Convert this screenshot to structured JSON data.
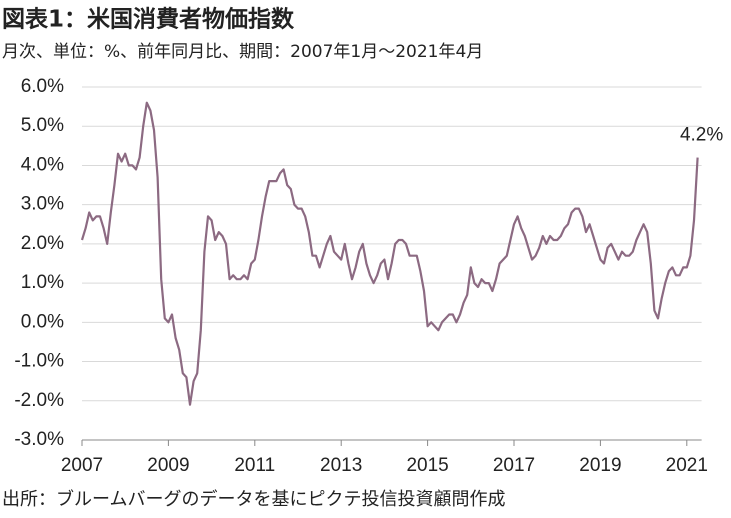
{
  "chart_data": {
    "type": "line",
    "title": "図表1：米国消費者物価指数",
    "subtitle": "月次、単位：%、前年同月比、期間：2007年1月～2021年4月",
    "source": "出所：ブルームバーグのデータを基にピクテ投信投資顧問作成",
    "x": [
      "2007-01",
      "2007-02",
      "2007-03",
      "2007-04",
      "2007-05",
      "2007-06",
      "2007-07",
      "2007-08",
      "2007-09",
      "2007-10",
      "2007-11",
      "2007-12",
      "2008-01",
      "2008-02",
      "2008-03",
      "2008-04",
      "2008-05",
      "2008-06",
      "2008-07",
      "2008-08",
      "2008-09",
      "2008-10",
      "2008-11",
      "2008-12",
      "2009-01",
      "2009-02",
      "2009-03",
      "2009-04",
      "2009-05",
      "2009-06",
      "2009-07",
      "2009-08",
      "2009-09",
      "2009-10",
      "2009-11",
      "2009-12",
      "2010-01",
      "2010-02",
      "2010-03",
      "2010-04",
      "2010-05",
      "2010-06",
      "2010-07",
      "2010-08",
      "2010-09",
      "2010-10",
      "2010-11",
      "2010-12",
      "2011-01",
      "2011-02",
      "2011-03",
      "2011-04",
      "2011-05",
      "2011-06",
      "2011-07",
      "2011-08",
      "2011-09",
      "2011-10",
      "2011-11",
      "2011-12",
      "2012-01",
      "2012-02",
      "2012-03",
      "2012-04",
      "2012-05",
      "2012-06",
      "2012-07",
      "2012-08",
      "2012-09",
      "2012-10",
      "2012-11",
      "2012-12",
      "2013-01",
      "2013-02",
      "2013-03",
      "2013-04",
      "2013-05",
      "2013-06",
      "2013-07",
      "2013-08",
      "2013-09",
      "2013-10",
      "2013-11",
      "2013-12",
      "2014-01",
      "2014-02",
      "2014-03",
      "2014-04",
      "2014-05",
      "2014-06",
      "2014-07",
      "2014-08",
      "2014-09",
      "2014-10",
      "2014-11",
      "2014-12",
      "2015-01",
      "2015-02",
      "2015-03",
      "2015-04",
      "2015-05",
      "2015-06",
      "2015-07",
      "2015-08",
      "2015-09",
      "2015-10",
      "2015-11",
      "2015-12",
      "2016-01",
      "2016-02",
      "2016-03",
      "2016-04",
      "2016-05",
      "2016-06",
      "2016-07",
      "2016-08",
      "2016-09",
      "2016-10",
      "2016-11",
      "2016-12",
      "2017-01",
      "2017-02",
      "2017-03",
      "2017-04",
      "2017-05",
      "2017-06",
      "2017-07",
      "2017-08",
      "2017-09",
      "2017-10",
      "2017-11",
      "2017-12",
      "2018-01",
      "2018-02",
      "2018-03",
      "2018-04",
      "2018-05",
      "2018-06",
      "2018-07",
      "2018-08",
      "2018-09",
      "2018-10",
      "2018-11",
      "2018-12",
      "2019-01",
      "2019-02",
      "2019-03",
      "2019-04",
      "2019-05",
      "2019-06",
      "2019-07",
      "2019-08",
      "2019-09",
      "2019-10",
      "2019-11",
      "2019-12",
      "2020-01",
      "2020-02",
      "2020-03",
      "2020-04",
      "2020-05",
      "2020-06",
      "2020-07",
      "2020-08",
      "2020-09",
      "2020-10",
      "2020-11",
      "2020-12",
      "2021-01",
      "2021-02",
      "2021-03",
      "2021-04"
    ],
    "series": [
      {
        "color": "#8c6a82",
        "values": [
          2.1,
          2.4,
          2.8,
          2.6,
          2.7,
          2.7,
          2.4,
          2.0,
          2.8,
          3.5,
          4.3,
          4.1,
          4.3,
          4.0,
          4.0,
          3.9,
          4.2,
          5.0,
          5.6,
          5.4,
          4.9,
          3.7,
          1.1,
          0.1,
          0.0,
          0.2,
          -0.4,
          -0.7,
          -1.3,
          -1.4,
          -2.1,
          -1.5,
          -1.3,
          -0.2,
          1.8,
          2.7,
          2.6,
          2.1,
          2.3,
          2.2,
          2.0,
          1.1,
          1.2,
          1.1,
          1.1,
          1.2,
          1.1,
          1.5,
          1.6,
          2.1,
          2.7,
          3.2,
          3.6,
          3.6,
          3.6,
          3.8,
          3.9,
          3.5,
          3.4,
          3.0,
          2.9,
          2.9,
          2.7,
          2.3,
          1.7,
          1.7,
          1.4,
          1.7,
          2.0,
          2.2,
          1.8,
          1.7,
          1.6,
          2.0,
          1.5,
          1.1,
          1.4,
          1.8,
          2.0,
          1.5,
          1.2,
          1.0,
          1.2,
          1.5,
          1.6,
          1.1,
          1.5,
          2.0,
          2.1,
          2.1,
          2.0,
          1.7,
          1.7,
          1.7,
          1.3,
          0.8,
          -0.1,
          0.0,
          -0.1,
          -0.2,
          0.0,
          0.1,
          0.2,
          0.2,
          0.0,
          0.2,
          0.5,
          0.7,
          1.4,
          1.0,
          0.9,
          1.1,
          1.0,
          1.0,
          0.8,
          1.1,
          1.5,
          1.6,
          1.7,
          2.1,
          2.5,
          2.7,
          2.4,
          2.2,
          1.9,
          1.6,
          1.7,
          1.9,
          2.2,
          2.0,
          2.2,
          2.1,
          2.1,
          2.2,
          2.4,
          2.5,
          2.8,
          2.9,
          2.9,
          2.7,
          2.3,
          2.5,
          2.2,
          1.9,
          1.6,
          1.5,
          1.9,
          2.0,
          1.8,
          1.6,
          1.8,
          1.7,
          1.7,
          1.8,
          2.1,
          2.3,
          2.5,
          2.3,
          1.5,
          0.3,
          0.1,
          0.6,
          1.0,
          1.3,
          1.4,
          1.2,
          1.2,
          1.4,
          1.4,
          1.7,
          2.6,
          4.2
        ]
      }
    ],
    "annotations": [
      {
        "text": "4.2%",
        "x": "2021-04",
        "y": 4.2,
        "color": "#5a2e50"
      }
    ],
    "xlim": [
      "2007-01",
      "2021-04"
    ],
    "xticks": [
      2007,
      2009,
      2011,
      2013,
      2015,
      2017,
      2019,
      2021
    ],
    "ylim": [
      -3,
      6
    ],
    "yticks": [
      {
        "value": -3,
        "label": "-3.0%"
      },
      {
        "value": -2,
        "label": "-2.0%"
      },
      {
        "value": -1,
        "label": "-1.0%"
      },
      {
        "value": 0,
        "label": "0.0%"
      },
      {
        "value": 1,
        "label": "1.0%"
      },
      {
        "value": 2,
        "label": "2.0%"
      },
      {
        "value": 3,
        "label": "3.0%"
      },
      {
        "value": 4,
        "label": "4.0%"
      },
      {
        "value": 5,
        "label": "5.0%"
      },
      {
        "value": 6,
        "label": "6.0%"
      }
    ],
    "grid": true
  }
}
